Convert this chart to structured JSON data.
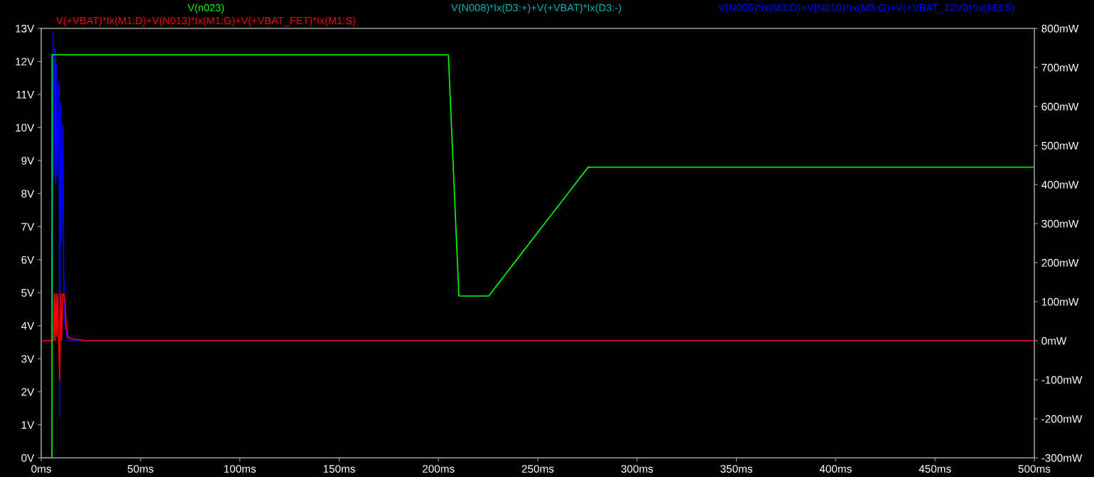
{
  "chart_data": {
    "type": "line",
    "legend": "top",
    "grid": false,
    "marker": "none",
    "line_style": "solid",
    "xlim": [
      0,
      500
    ],
    "xticks": [
      {
        "value": 0,
        "label": "0ms"
      },
      {
        "value": 50,
        "label": "50ms"
      },
      {
        "value": 100,
        "label": "100ms"
      },
      {
        "value": 150,
        "label": "150ms"
      },
      {
        "value": 200,
        "label": "200ms"
      },
      {
        "value": 250,
        "label": "250ms"
      },
      {
        "value": 300,
        "label": "300ms"
      },
      {
        "value": 350,
        "label": "350ms"
      },
      {
        "value": 400,
        "label": "400ms"
      },
      {
        "value": 450,
        "label": "450ms"
      },
      {
        "value": 500,
        "label": "500ms"
      }
    ],
    "ylim": [
      0,
      13
    ],
    "yticks": [
      {
        "value": 0,
        "label": "0V"
      },
      {
        "value": 1,
        "label": "1V"
      },
      {
        "value": 2,
        "label": "2V"
      },
      {
        "value": 3,
        "label": "3V"
      },
      {
        "value": 4,
        "label": "4V"
      },
      {
        "value": 5,
        "label": "5V"
      },
      {
        "value": 6,
        "label": "6V"
      },
      {
        "value": 7,
        "label": "7V"
      },
      {
        "value": 8,
        "label": "8V"
      },
      {
        "value": 9,
        "label": "9V"
      },
      {
        "value": 10,
        "label": "10V"
      },
      {
        "value": 11,
        "label": "11V"
      },
      {
        "value": 12,
        "label": "12V"
      },
      {
        "value": 13,
        "label": "13V"
      }
    ],
    "y2lim": [
      -300,
      800
    ],
    "y2ticks": [
      {
        "value": -300,
        "label": "-300mW"
      },
      {
        "value": -200,
        "label": "-200mW"
      },
      {
        "value": -100,
        "label": "-100mW"
      },
      {
        "value": 0,
        "label": "0mW"
      },
      {
        "value": 100,
        "label": "100mW"
      },
      {
        "value": 200,
        "label": "200mW"
      },
      {
        "value": 300,
        "label": "300mW"
      },
      {
        "value": 400,
        "label": "400mW"
      },
      {
        "value": 500,
        "label": "500mW"
      },
      {
        "value": 600,
        "label": "600mW"
      },
      {
        "value": 700,
        "label": "700mW"
      },
      {
        "value": 800,
        "label": "800mW"
      }
    ],
    "series": [
      {
        "name": "V(n023)",
        "color": "#00ff00",
        "x": [
          0,
          5.4,
          5.5,
          205,
          210.3,
          225.3,
          275.4,
          500
        ],
        "values": [
          0,
          0,
          12.2,
          12.2,
          4.9,
          4.9,
          8.8,
          8.8
        ]
      },
      {
        "name": "V(N008)*Ix(D3:+)+V(+VBAT)*Ix(D3:-)",
        "color": "#00b4b4",
        "axis": "y2"
      },
      {
        "name": "V(N005)*Ix(M3:D)+V(N010)*Ix(M3:G)+V(+VBAT_12V0)*Ix(M3:S)",
        "color": "#0000ff",
        "axis": "y2",
        "x": [
          0,
          5.6,
          6.0,
          6.4,
          6.9,
          7.3,
          7.6,
          8.1,
          8.7,
          9.1,
          9.3,
          9.5,
          9.7,
          10.2,
          10.9,
          11.3,
          12.0,
          12.9,
          14,
          500
        ],
        "values": [
          0,
          0,
          790,
          420,
          750,
          400,
          710,
          420,
          660,
          380,
          -195,
          400,
          610,
          250,
          555,
          180,
          40,
          5,
          0,
          0
        ]
      },
      {
        "name": "V(+VBAT)*Ix(M1:D)+V(N013)*Ix(M1:G)+V(+VBAT_FET)*Ix(M1:S)",
        "color": "#ff0000",
        "axis": "y2",
        "x": [
          0,
          6.2,
          6.5,
          7.0,
          7.4,
          7.9,
          8.3,
          8.8,
          9.3,
          9.8,
          10.3,
          10.8,
          11.4,
          12.0,
          12.6,
          13.5,
          15,
          23,
          500
        ],
        "values": [
          0,
          0,
          120,
          0,
          120,
          10,
          120,
          0,
          -100,
          120,
          0,
          120,
          120,
          100,
          40,
          10,
          5,
          0,
          0
        ]
      }
    ]
  }
}
